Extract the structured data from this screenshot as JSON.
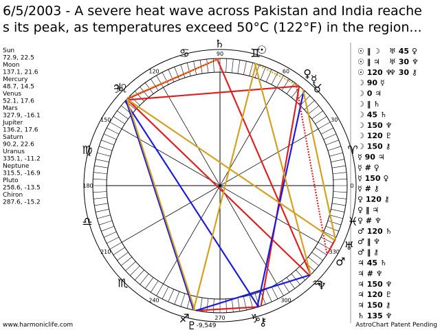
{
  "header": {
    "title_lines": [
      "6/5/2003 - A severe heat wave across Pakistan and India reache",
      "s its peak, as temperatures exceed 50°C (122°F) in the region..."
    ]
  },
  "planets": [
    {
      "name": "Sun",
      "glyph": "☉",
      "pos": "72.9, 22.5"
    },
    {
      "name": "Moon",
      "glyph": "☽",
      "pos": "137.1, 21.6"
    },
    {
      "name": "Mercury",
      "glyph": "☿",
      "pos": "48.7, 14.5"
    },
    {
      "name": "Venus",
      "glyph": "♀",
      "pos": "52.1, 17.6"
    },
    {
      "name": "Mars",
      "glyph": "♂",
      "pos": "327.9, -16.1"
    },
    {
      "name": "Jupiter",
      "glyph": "♃",
      "pos": "136.2, 17.6"
    },
    {
      "name": "Saturn",
      "glyph": "♄",
      "pos": "90.2, 22.6"
    },
    {
      "name": "Uranus",
      "glyph": "♅",
      "pos": "335.1, -11.2"
    },
    {
      "name": "Neptune",
      "glyph": "♆",
      "pos": "315.5, -16.9"
    },
    {
      "name": "Pluto",
      "glyph": "♇",
      "pos": "258.6, -13.5"
    },
    {
      "name": "Chiron",
      "glyph": "⚷",
      "pos": "287.6, -15.2"
    }
  ],
  "wheel": {
    "degree_labels": [
      0,
      30,
      60,
      90,
      120,
      150,
      180,
      210,
      240,
      270,
      300,
      330
    ],
    "signs": [
      "♈",
      "♉",
      "♊",
      "♋",
      "♌",
      "♍",
      "♎",
      "♏",
      "♐",
      "♑",
      "♒",
      "♓"
    ],
    "center_label": "-9,549"
  },
  "aspects": {
    "column1": [
      "☉ ‖ ☽",
      "☉ ‖ ♃",
      "☉ 120 ♆",
      "☽ 90 ☿",
      "☽ 0 ♃",
      "☽ ‖ ♄",
      "☽ 45 ♄",
      "☽ 150 ♆",
      "☽ 120 ♇",
      "☽ 150 ⚷",
      "☿ 90 ♃",
      "☿ # ♀",
      "☿ 150 ♀",
      "☿ # ⚷",
      "♀ 120 ⚷",
      "♀ ‖ ♃",
      "♀ # ♆",
      "♂ 120 ♄",
      "♂ ‖ ♆",
      "♂ ‖ ⚷",
      "♃ 45 ♄",
      "♃ # ♆",
      "♃ 150 ♆",
      "♃ 120 ♇",
      "♃ 150 ⚷",
      "♄ 135 ♆"
    ],
    "column2": [
      "♅ 45 ♀",
      "♅ 30 ♆",
      "♆ 30 ⚷"
    ]
  },
  "footer": {
    "left": "www.harmoniclife.com",
    "right": "AstroChart Patent Pending"
  }
}
